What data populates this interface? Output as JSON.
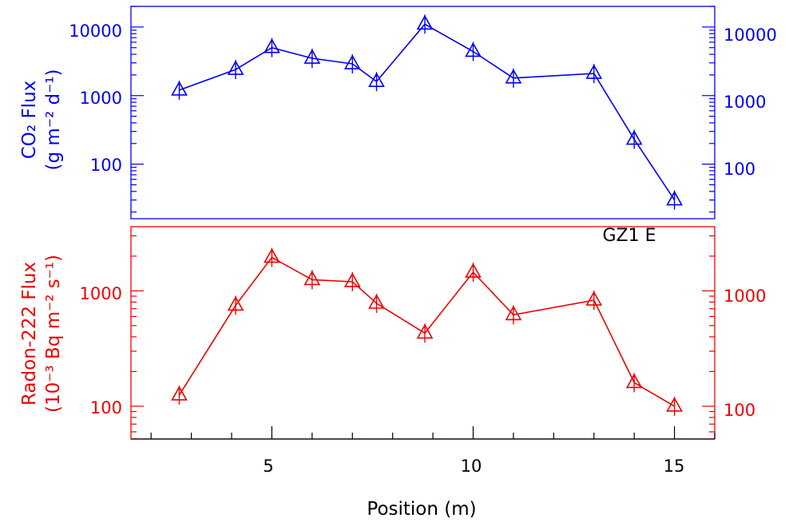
{
  "chart_data": [
    {
      "type": "line",
      "ylabel_line1": "CO₂ Flux",
      "ylabel_line2": "(g m⁻² d⁻¹)",
      "xlabel": "",
      "y_scale": "log",
      "ylim": [
        16,
        20000
      ],
      "xlim": [
        1.5,
        16
      ],
      "y_tick_labels": [
        "100",
        "1000",
        "10000"
      ],
      "y_tick_labels_right": [
        "100",
        "1000",
        "10000"
      ],
      "annotation": "GZ1 E",
      "color": "#0000ee",
      "series": [
        {
          "x": [
            2.7,
            4.1,
            5.0,
            6.0,
            7.0,
            7.6,
            8.8,
            10.0,
            11.0,
            13.0,
            14.0,
            15.0
          ],
          "values": [
            1200,
            2400,
            5000,
            3500,
            2900,
            1600,
            11000,
            4400,
            1800,
            2100,
            230,
            30
          ]
        }
      ],
      "marker": "triangle"
    },
    {
      "type": "line",
      "ylabel_line1": "Radon-222 Flux",
      "ylabel_line2": "(10⁻³ Bq m⁻² s⁻¹)",
      "xlabel": "Position (m)",
      "y_scale": "log",
      "ylim": [
        52,
        3600
      ],
      "xlim": [
        1.5,
        16
      ],
      "x_tick_labels": [
        "5",
        "10",
        "15"
      ],
      "y_tick_labels": [
        "100",
        "1000"
      ],
      "y_tick_labels_right": [
        "100",
        "1000"
      ],
      "color": "#ee0000",
      "series": [
        {
          "x": [
            2.7,
            4.1,
            5.0,
            6.0,
            7.0,
            7.6,
            8.8,
            10.0,
            11.0,
            13.0,
            14.0,
            15.0
          ],
          "values": [
            125,
            750,
            1950,
            1250,
            1200,
            780,
            430,
            1450,
            620,
            830,
            160,
            100
          ]
        }
      ],
      "marker": "triangle"
    }
  ]
}
